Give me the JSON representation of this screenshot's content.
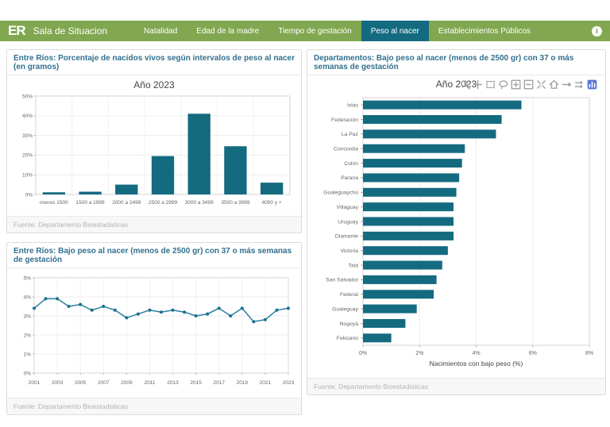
{
  "header": {
    "logo": "ER",
    "title": "Sala de Situacion",
    "nav": [
      {
        "label": "Natalidad",
        "active": false
      },
      {
        "label": "Edad de la madre",
        "active": false
      },
      {
        "label": "Tiempo de gestación",
        "active": false
      },
      {
        "label": "Peso al nacer",
        "active": true
      },
      {
        "label": "Establecimientos Públicos",
        "active": false
      }
    ],
    "info_icon": "i"
  },
  "panels": {
    "weight_intervals": {
      "title": "Entre Ríos: Porcentaje de nacidos vivos según intervalos de peso al nacer (en gramos)",
      "source": "Fuente: Departamento Bioestadisticas"
    },
    "low_weight_trend": {
      "title": "Entre Ríos: Bajo peso al nacer (menos de 2500 gr) con 37 o más semanas de gestación",
      "source": "Fuente: Departamento Bioestadisticas"
    },
    "departments": {
      "title": "Departamentos: Bajo peso al nacer (menos de 2500 gr) con 37 o más semanas de gestación",
      "source": "Fuente: Departamento Bioestadisticas",
      "modebar_icons": [
        "zoom",
        "pan",
        "box-select",
        "lasso",
        "zoom-in",
        "zoom-out",
        "autoscale",
        "reset-axes",
        "hover-closest",
        "hover-compare",
        "plotly-logo"
      ]
    }
  },
  "colors": {
    "header_green": "#81a750",
    "accent_teal": "#146b80",
    "line_teal": "#2a7f9e",
    "title_blue": "#31708f"
  },
  "chart_data": [
    {
      "type": "bar",
      "title": "Año 2023",
      "categories": [
        "menos 1500",
        "1500 a 1999",
        "2000 a 2499",
        "2500 a 2999",
        "3000 a 3499",
        "3500 a 3999",
        "4000 y +"
      ],
      "values": [
        1.1,
        1.4,
        5.0,
        19.5,
        41.0,
        24.5,
        6.0
      ],
      "xlabel": "",
      "ylabel": "",
      "ylim": [
        0,
        50
      ],
      "ytick_step": 10,
      "ytick_suffix": "%",
      "grid": true,
      "bar_color": "#146b80"
    },
    {
      "type": "line",
      "title": "",
      "x": [
        2001,
        2002,
        2003,
        2004,
        2005,
        2006,
        2007,
        2008,
        2009,
        2010,
        2011,
        2012,
        2013,
        2014,
        2015,
        2016,
        2017,
        2018,
        2019,
        2020,
        2021,
        2022,
        2023
      ],
      "values": [
        3.4,
        3.9,
        3.9,
        3.5,
        3.6,
        3.3,
        3.5,
        3.3,
        2.9,
        3.1,
        3.3,
        3.2,
        3.3,
        3.2,
        3.0,
        3.1,
        3.4,
        3.0,
        3.4,
        2.7,
        2.8,
        3.3,
        3.4
      ],
      "xticks": [
        2001,
        2003,
        2005,
        2007,
        2009,
        2011,
        2013,
        2015,
        2017,
        2019,
        2021,
        2023
      ],
      "xlabel": "",
      "ylabel": "",
      "ylim": [
        0,
        5
      ],
      "ytick_step": 1,
      "ytick_suffix": "%",
      "grid": true,
      "line_color": "#2a7f9e",
      "marker_color": "#19708f"
    },
    {
      "type": "hbar",
      "title": "Año 2023",
      "categories": [
        "Islas",
        "Federación",
        "La Paz",
        "Concordia",
        "Colón",
        "Paraná",
        "Gualeguaychú",
        "Villaguay",
        "Uruguay",
        "Diamante",
        "Victoria",
        "Tala",
        "San Salvador",
        "Federal",
        "Gualeguay",
        "Nogoyá",
        "Feliciano"
      ],
      "values": [
        5.6,
        4.9,
        4.7,
        3.6,
        3.5,
        3.4,
        3.3,
        3.2,
        3.2,
        3.2,
        3.0,
        2.8,
        2.6,
        2.5,
        1.9,
        1.5,
        1.0
      ],
      "xlabel": "Nacimientos con bajo peso (%)",
      "ylabel": "",
      "xlim": [
        0,
        8
      ],
      "xtick_step": 2,
      "xtick_suffix": "%",
      "grid": true,
      "bar_color": "#146b80"
    }
  ]
}
